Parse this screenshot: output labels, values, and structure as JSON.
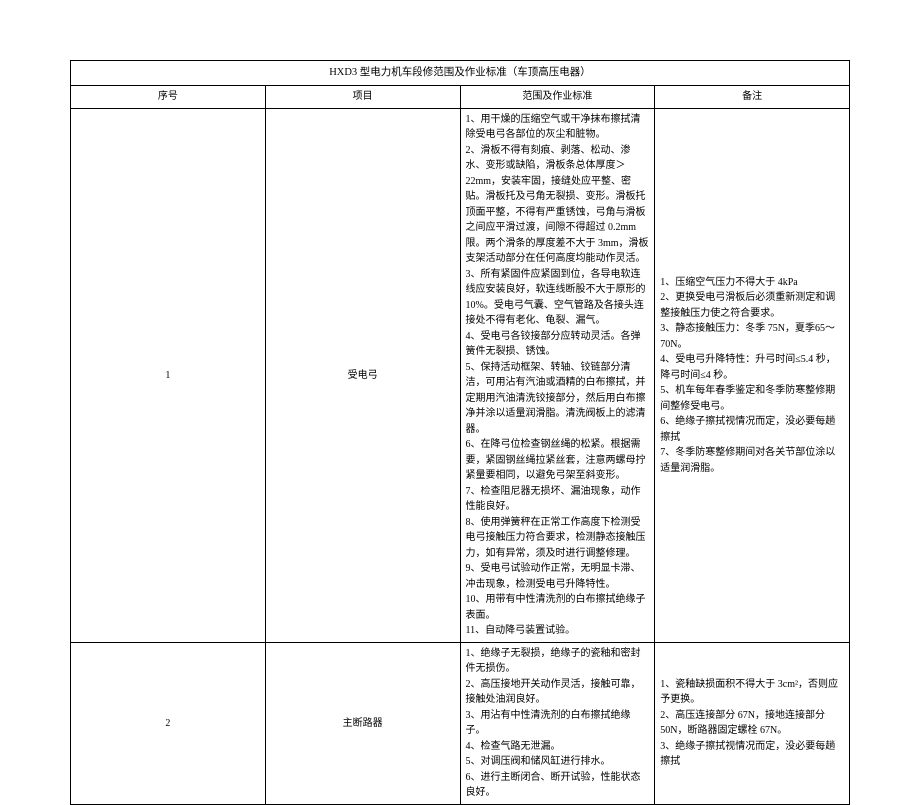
{
  "title": "HXD3 型电力机车段修范围及作业标准（车顶高压电器）",
  "headers": {
    "seq": "序号",
    "item": "项目",
    "scope": "范围及作业标准",
    "remark": "备注"
  },
  "rows": [
    {
      "seq": "1",
      "item": "受电弓",
      "scope": "1、用干燥的压缩空气或干净抹布擦拭清除受电弓各部位的灰尘和脏物。\n2、滑板不得有刻痕、剥落、松动、渗水、变形或缺陷，滑板条总体厚度＞22mm，安装牢固，接缝处应平整、密贴。滑板托及弓角无裂损、变形。滑板托顶面平整，不得有严重锈蚀，弓角与滑板之间应平滑过渡，间隙不得超过 0.2mm限。两个滑条的厚度差不大于 3mm，滑板支架活动部分在任何高度均能动作灵活。\n3、所有紧固件应紧固到位，各导电软连线应安装良好，软连线断股不大于原形的10%。受电弓气囊、空气管路及各接头连接处不得有老化、龟裂、漏气。\n4、受电弓各铰接部分应转动灵活。各弹簧件无裂损、锈蚀。\n5、保持活动框架、转轴、铰链部分清洁，可用沾有汽油或酒精的白布擦拭，并定期用汽油清洗铰接部分，然后用白布擦净并涂以适量润滑脂。清洗阀板上的滤清器。\n6、在降弓位检查钢丝绳的松紧。根据需要，紧固钢丝绳拉紧丝套，注意两螺母拧紧量要相同，以避免弓架至斜变形。\n7、检查阻尼器无损坏、漏油现象，动作性能良好。\n8、使用弹簧秤在正常工作高度下检测受电弓接触压力符合要求，检测静态接触压力，如有异常，须及时进行调整修理。\n9、受电弓试验动作正常，无明显卡滞、冲击现象，检测受电弓升降特性。\n10、用带有中性清洗剂的白布擦拭绝缘子表面。\n11、自动降弓装置试验。",
      "remark": "1、压缩空气压力不得大于 4kPa\n2、更换受电弓滑板后必须重新测定和调整接触压力使之符合要求。\n3、静态接触压力：冬季 75N，夏季65～70N。\n4、受电弓升降特性：升弓时间≤5.4 秒，降弓时间≤4 秒。\n5、机车每年春季鉴定和冬季防寒整修期间整修受电弓。\n6、绝缘子擦拭视情况而定，没必要每趟擦拭\n7、冬季防寒整修期间对各关节部位涂以适量润滑脂。"
    },
    {
      "seq": "2",
      "item": "主断路器",
      "scope": "1、绝缘子无裂损，绝缘子的瓷釉和密封件无损伤。\n2、高压接地开关动作灵活，接触可靠，接触处油润良好。\n3、用沾有中性清洗剂的白布擦拭绝缘子。\n4、检查气路无泄漏。\n5、对调压阀和储风缸进行排水。\n6、进行主断闭合、断开试验，性能状态良好。",
      "remark": "1、瓷釉缺损面积不得大于 3cm²，否则应予更换。\n2、高压连接部分 67N，接地连接部分50N，断路器固定螺栓 67N。\n3、绝缘子擦拭视情况而定，没必要每趟擦拭"
    }
  ]
}
